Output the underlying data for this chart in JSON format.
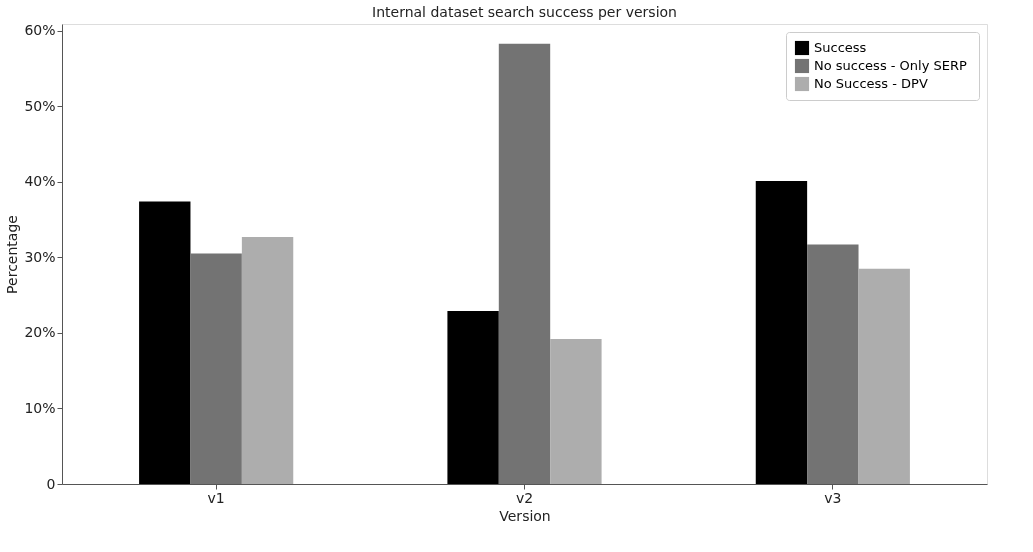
{
  "chart_data": {
    "type": "bar",
    "title": "Internal dataset search success per version",
    "xlabel": "Version",
    "ylabel": "Percentage",
    "categories": [
      "v1",
      "v2",
      "v3"
    ],
    "series": [
      {
        "name": "Success",
        "color": "#000000",
        "values": [
          37.4,
          22.9,
          40.1
        ]
      },
      {
        "name": "No success  - Only SERP",
        "color": "#737373",
        "values": [
          30.5,
          58.3,
          31.7
        ]
      },
      {
        "name": "No Success - DPV",
        "color": "#adadad",
        "values": [
          32.7,
          19.2,
          28.5
        ]
      }
    ],
    "ylim": [
      0,
      60.9
    ],
    "yticks": [
      0,
      {
        "value": 10,
        "label": "10%"
      },
      {
        "value": 20,
        "label": "20%"
      },
      {
        "value": 30,
        "label": "30%"
      },
      {
        "value": 40,
        "label": "40%"
      },
      {
        "value": 50,
        "label": "50%"
      },
      {
        "value": 60,
        "label": "60%"
      }
    ],
    "grid": false,
    "legend": "top right"
  }
}
